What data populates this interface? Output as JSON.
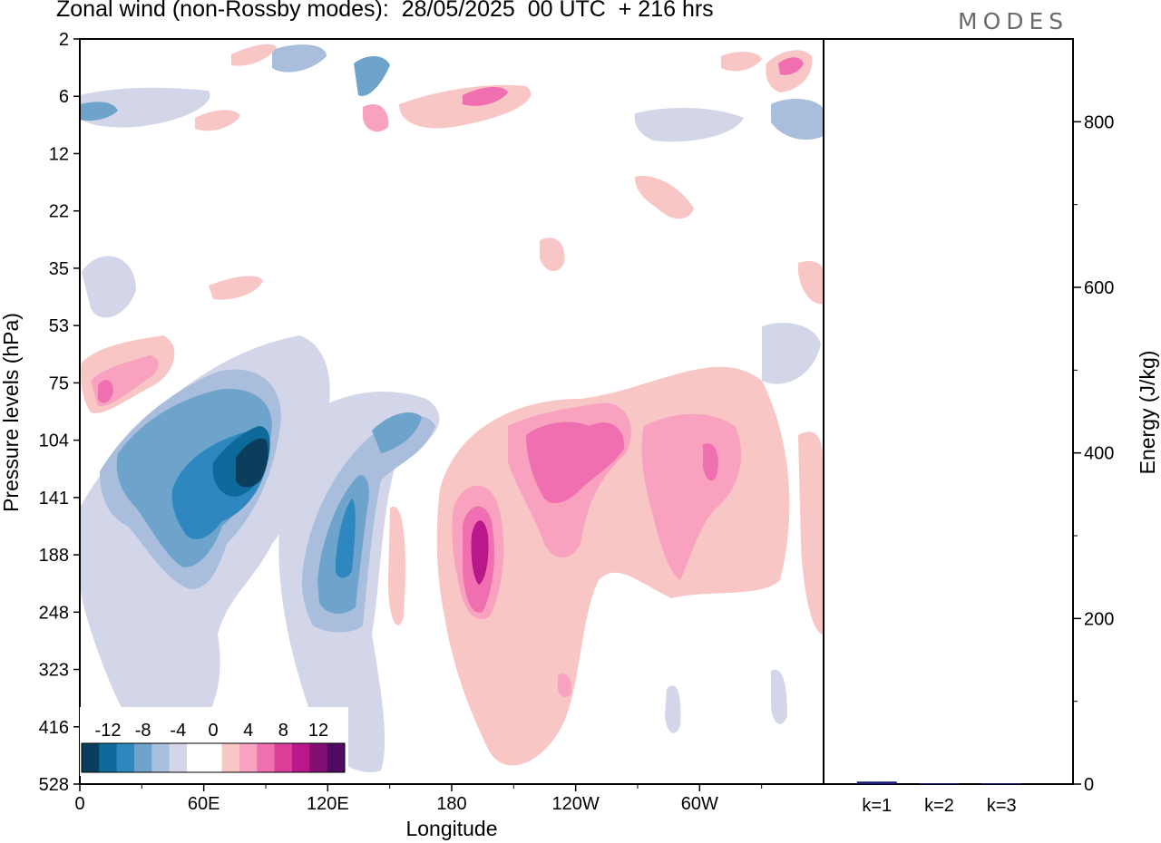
{
  "header": {
    "title": "Zonal wind (non-Rossby modes):  28/05/2025  00 UTC  + 216 hrs",
    "brand": "MODES"
  },
  "chart_data": [
    {
      "type": "heatmap",
      "title": "Zonal wind (non-Rossby modes):  28/05/2025  00 UTC  + 216 hrs",
      "xlabel": "Longitude",
      "ylabel": "Pressure levels (hPa)",
      "x_ticks": [
        "0",
        "60E",
        "120E",
        "180",
        "120W",
        "60W"
      ],
      "x_tick_degrees": [
        0,
        60,
        120,
        180,
        240,
        300
      ],
      "xlim": [
        0,
        360
      ],
      "y_ticks": [
        "2",
        "6",
        "12",
        "22",
        "35",
        "53",
        "75",
        "104",
        "141",
        "188",
        "248",
        "323",
        "416",
        "528"
      ],
      "y_scale": "categorical pressure levels (top to bottom)",
      "colorbar": {
        "labels": [
          "-12",
          "-8",
          "-4",
          "0",
          "4",
          "8",
          "12"
        ],
        "colors": [
          "#0b3d5c",
          "#0f6a9c",
          "#2f87bf",
          "#6ea3cc",
          "#a8bedc",
          "#d3d6e8",
          "#ffffff",
          "#ffffff",
          "#f9c6c6",
          "#f8a2bf",
          "#f06fb0",
          "#db3d98",
          "#b9188a",
          "#830f73",
          "#4f0a62"
        ],
        "label_positions": [
          -12,
          -8,
          -4,
          0,
          4,
          8,
          12
        ],
        "placement": "bottom-left inset"
      },
      "features": [
        {
          "name": "negative core (easterly)",
          "lon": 82,
          "level": "104-141",
          "value": -13
        },
        {
          "name": "negative core",
          "lon": 52,
          "level": "141-188",
          "value": -9
        },
        {
          "name": "negative lobe",
          "lon": 125,
          "level": "188-248",
          "value": -8
        },
        {
          "name": "positive core",
          "lon": 190,
          "level": "188",
          "value": 10
        },
        {
          "name": "positive core",
          "lon": 225,
          "level": "104-141",
          "value": 9
        },
        {
          "name": "positive core",
          "lon": 293,
          "level": "104-141",
          "value": 8
        },
        {
          "name": "positive patch",
          "lon": 12,
          "level": "75",
          "value": 8
        }
      ],
      "grid": false
    },
    {
      "type": "bar",
      "categories": [
        "k=1",
        "k=2",
        "k=3"
      ],
      "values": [
        3,
        1,
        1
      ],
      "ylabel": "Energy (J/kg)",
      "y_ticks": [
        "0",
        "200",
        "400",
        "600",
        "800"
      ],
      "ylim": [
        0,
        900
      ],
      "bar_color": "#1a1a7a",
      "y_axis_side": "right"
    }
  ]
}
